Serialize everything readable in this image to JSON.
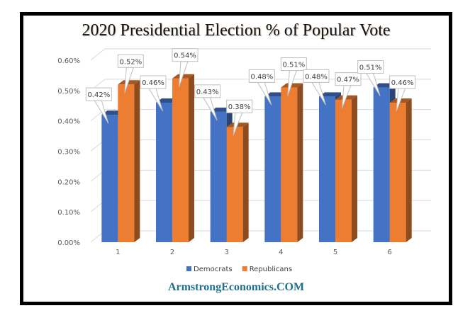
{
  "chart_data": {
    "type": "bar",
    "title": "2020 Presidential Election % of Popular Vote",
    "xlabel": "",
    "ylabel": "",
    "categories": [
      "1",
      "2",
      "3",
      "4",
      "5",
      "6"
    ],
    "series": [
      {
        "name": "Democrats",
        "color": "#4472c4",
        "values": [
          0.42,
          0.46,
          0.43,
          0.48,
          0.48,
          0.51
        ],
        "labels": [
          "0.42%",
          "0.46%",
          "0.43%",
          "0.48%",
          "0.48%",
          "0.51%"
        ]
      },
      {
        "name": "Republicans",
        "color": "#ed7d31",
        "values": [
          0.52,
          0.54,
          0.38,
          0.51,
          0.47,
          0.46
        ],
        "labels": [
          "0.52%",
          "0.54%",
          "0.38%",
          "0.51%",
          "0.47%",
          "0.46%"
        ]
      }
    ],
    "ylim": [
      0,
      0.6
    ],
    "yticks": [
      "0.00%",
      "0.10%",
      "0.20%",
      "0.30%",
      "0.40%",
      "0.50%",
      "0.60%"
    ],
    "grid": true,
    "legend": "bottom",
    "style": "3d-column"
  },
  "footer": {
    "brand": "ArmstrongEconomics.COM"
  }
}
